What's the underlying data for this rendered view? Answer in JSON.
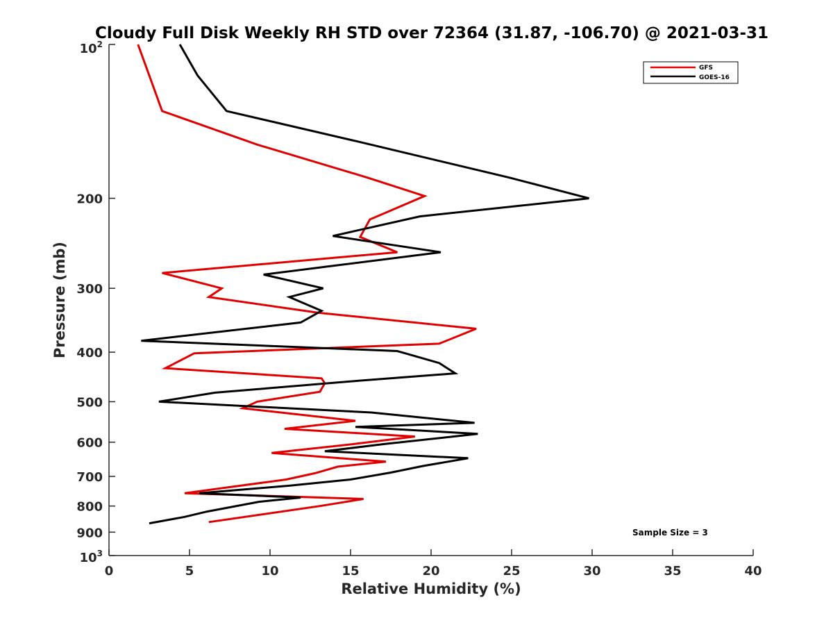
{
  "chart_data": {
    "type": "line",
    "title": "Cloudy Full Disk Weekly RH STD over 72364 (31.87, -106.70) @ 2021-03-31",
    "xlabel": "Relative Humidity (%)",
    "ylabel": "Pressure (mb)",
    "xlim": [
      0,
      40
    ],
    "ylim": [
      100,
      1000
    ],
    "y_scale": "log",
    "y_reversed": true,
    "grid": false,
    "legend_position": "top-right",
    "x_ticks": [
      0,
      5,
      10,
      15,
      20,
      25,
      30,
      35,
      40
    ],
    "y_ticks": [
      200,
      300,
      400,
      500,
      600,
      700,
      800,
      900
    ],
    "y_tick_labels": [
      "200",
      "300",
      "400",
      "500",
      "600",
      "700",
      "800",
      "900"
    ],
    "y_end_labels": {
      "top_base": "10",
      "top_exp": "2",
      "bottom_base": "10",
      "bottom_exp": "3"
    },
    "series": [
      {
        "name": "GFS",
        "color": "#e00000",
        "points": [
          [
            1.8,
            100
          ],
          [
            3.3,
            135
          ],
          [
            9.2,
            157
          ],
          [
            16.0,
            182
          ],
          [
            19.6,
            198
          ],
          [
            16.2,
            220
          ],
          [
            15.6,
            238
          ],
          [
            17.9,
            255
          ],
          [
            3.3,
            280
          ],
          [
            7.0,
            300
          ],
          [
            6.2,
            312
          ],
          [
            13.0,
            335
          ],
          [
            22.8,
            360
          ],
          [
            20.5,
            385
          ],
          [
            5.3,
            402
          ],
          [
            3.5,
            430
          ],
          [
            13.2,
            450
          ],
          [
            13.4,
            460
          ],
          [
            13.1,
            478
          ],
          [
            9.2,
            500
          ],
          [
            8.3,
            515
          ],
          [
            15.3,
            545
          ],
          [
            10.9,
            565
          ],
          [
            19.0,
            585
          ],
          [
            15.2,
            605
          ],
          [
            10.1,
            630
          ],
          [
            17.2,
            655
          ],
          [
            14.2,
            670
          ],
          [
            12.8,
            690
          ],
          [
            11.0,
            710
          ],
          [
            4.7,
            755
          ],
          [
            15.8,
            775
          ],
          [
            13.1,
            800
          ],
          [
            6.2,
            860
          ]
        ]
      },
      {
        "name": "GOES-16",
        "color": "#000000",
        "points": [
          [
            4.4,
            100
          ],
          [
            5.5,
            115
          ],
          [
            7.3,
            135
          ],
          [
            15.5,
            155
          ],
          [
            24.8,
            182
          ],
          [
            29.8,
            200
          ],
          [
            19.3,
            217
          ],
          [
            13.9,
            237
          ],
          [
            20.6,
            255
          ],
          [
            9.6,
            282
          ],
          [
            13.3,
            300
          ],
          [
            11.2,
            312
          ],
          [
            13.2,
            332
          ],
          [
            11.9,
            350
          ],
          [
            2.0,
            380
          ],
          [
            17.9,
            398
          ],
          [
            20.5,
            420
          ],
          [
            21.5,
            440
          ],
          [
            15.5,
            455
          ],
          [
            6.6,
            480
          ],
          [
            3.1,
            500
          ],
          [
            16.3,
            525
          ],
          [
            22.7,
            550
          ],
          [
            15.3,
            560
          ],
          [
            22.9,
            578
          ],
          [
            17.1,
            605
          ],
          [
            13.4,
            625
          ],
          [
            22.3,
            645
          ],
          [
            19.5,
            668
          ],
          [
            17.5,
            688
          ],
          [
            15.0,
            710
          ],
          [
            11.2,
            730
          ],
          [
            5.6,
            755
          ],
          [
            11.9,
            770
          ],
          [
            9.3,
            785
          ],
          [
            6.1,
            820
          ],
          [
            4.7,
            840
          ],
          [
            2.5,
            865
          ]
        ]
      }
    ],
    "annotation": "Sample Size = 3"
  }
}
